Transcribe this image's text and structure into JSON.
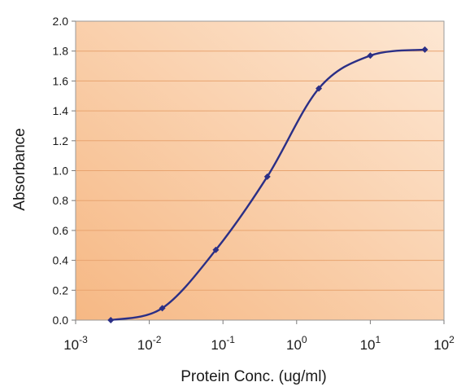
{
  "chart_data": {
    "type": "line",
    "title": "",
    "xlabel": "Protein Conc. (ug/ml)",
    "ylabel": "Absorbance",
    "x_scale": "log10",
    "xlim": [
      0.001,
      100
    ],
    "ylim": [
      0,
      2.0
    ],
    "x_ticks": [
      {
        "value": 0.001,
        "base": "10",
        "exp": "-3"
      },
      {
        "value": 0.01,
        "base": "10",
        "exp": "-2"
      },
      {
        "value": 0.1,
        "base": "10",
        "exp": "-1"
      },
      {
        "value": 1,
        "base": "10",
        "exp": "0"
      },
      {
        "value": 10,
        "base": "10",
        "exp": "1"
      },
      {
        "value": 100,
        "base": "10",
        "exp": "2"
      }
    ],
    "y_ticks": [
      "0.0",
      "0.2",
      "0.4",
      "0.6",
      "0.8",
      "1.0",
      "1.2",
      "1.4",
      "1.6",
      "1.8",
      "2.0"
    ],
    "grid": "horizontal",
    "legend": "none",
    "series": [
      {
        "x": [
          0.003,
          0.015,
          0.08,
          0.4,
          2,
          10,
          55
        ],
        "y": [
          0.0,
          0.08,
          0.47,
          0.96,
          1.55,
          1.77,
          1.81
        ]
      }
    ],
    "colors": {
      "line": "#2b2f86",
      "marker": "#2b2f86",
      "plot_bg_from": "#f6b884",
      "plot_bg_to": "#fde7d3",
      "grid": "#e8a470"
    }
  }
}
